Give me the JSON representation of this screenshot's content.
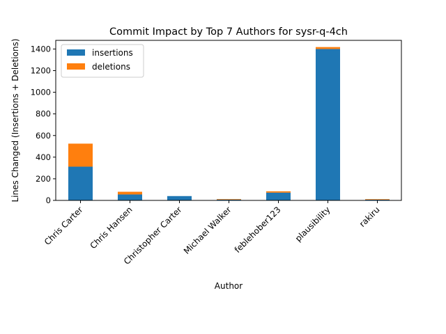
{
  "chart_data": {
    "type": "bar",
    "stacked": true,
    "title": "Commit Impact by Top 7 Authors for sysr-q-4ch",
    "xlabel": "Author",
    "ylabel": "Lines Changed (Insertions + Deletions)",
    "categories": [
      "Chris Carter",
      "Chris Hansen",
      "Christopher Carter",
      "Michael Walker",
      "feblehober123",
      "plausibility",
      "rakiru"
    ],
    "series": [
      {
        "name": "insertions",
        "color": "#1f77b4",
        "values": [
          312,
          55,
          40,
          8,
          72,
          1400,
          7
        ]
      },
      {
        "name": "deletions",
        "color": "#ff7f0e",
        "values": [
          213,
          25,
          0,
          5,
          12,
          18,
          5
        ]
      }
    ],
    "ylim": [
      0,
      1480
    ],
    "yticks": [
      0,
      200,
      400,
      600,
      800,
      1000,
      1200,
      1400
    ],
    "legend": "top-left",
    "grid": false
  }
}
